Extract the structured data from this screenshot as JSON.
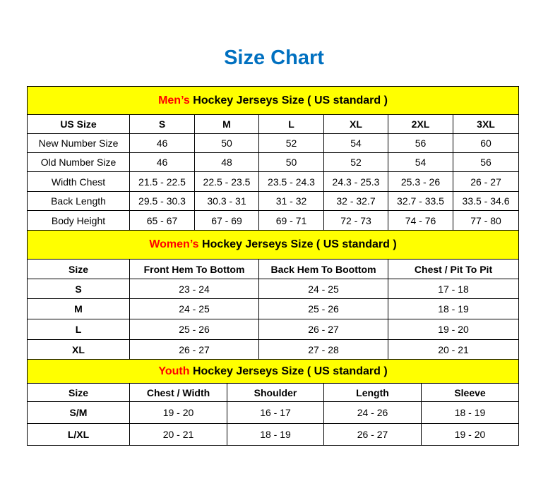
{
  "title": "Size Chart",
  "colors": {
    "title": "#0070C0",
    "header_bg": "#FFFF00",
    "header_accent": "#FF0000"
  },
  "sections": [
    {
      "prefix": "Men’s",
      "heading": " Hockey Jerseys Size ( US standard )",
      "columns": [
        "US Size",
        "S",
        "M",
        "L",
        "XL",
        "2XL",
        "3XL"
      ],
      "rows": [
        [
          "New Number Size",
          "46",
          "50",
          "52",
          "54",
          "56",
          "60"
        ],
        [
          "Old Number Size",
          "46",
          "48",
          "50",
          "52",
          "54",
          "56"
        ],
        [
          "Width Chest",
          "21.5 - 22.5",
          "22.5 - 23.5",
          "23.5 - 24.3",
          "24.3 - 25.3",
          "25.3 - 26",
          "26 - 27"
        ],
        [
          "Back Length",
          "29.5 - 30.3",
          "30.3 - 31",
          "31 - 32",
          "32 - 32.7",
          "32.7 - 33.5",
          "33.5 - 34.6"
        ],
        [
          "Body Height",
          "65 - 67",
          "67 - 69",
          "69 - 71",
          "72 - 73",
          "74 - 76",
          "77 - 80"
        ]
      ]
    },
    {
      "prefix": "Women’s",
      "heading": " Hockey Jerseys Size ( US standard )",
      "columns": [
        "Size",
        "Front Hem To Bottom",
        "Back Hem To Boottom",
        "Chest / Pit To Pit"
      ],
      "rows": [
        [
          "S",
          "23 - 24",
          "24 - 25",
          "17 - 18"
        ],
        [
          "M",
          "24 - 25",
          "25 - 26",
          "18 - 19"
        ],
        [
          "L",
          "25 - 26",
          "26 - 27",
          "19 - 20"
        ],
        [
          "XL",
          "26 - 27",
          "27 - 28",
          "20 - 21"
        ]
      ]
    },
    {
      "prefix": "Youth",
      "heading": " Hockey Jerseys Size ( US standard )",
      "columns": [
        "Size",
        "Chest / Width",
        "Shoulder",
        "Length",
        "Sleeve"
      ],
      "rows": [
        [
          "S/M",
          "19 - 20",
          "16 - 17",
          "24 - 26",
          "18 - 19"
        ],
        [
          "L/XL",
          "20 - 21",
          "18 - 19",
          "26 - 27",
          "19 - 20"
        ]
      ]
    }
  ]
}
